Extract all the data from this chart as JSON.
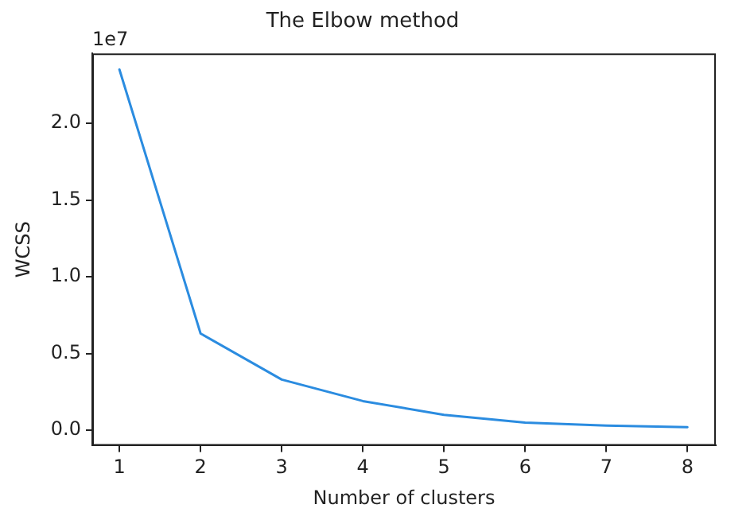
{
  "chart_data": {
    "type": "line",
    "title": "The Elbow method",
    "xlabel": "Number of clusters",
    "ylabel": "WCSS",
    "annotations": [
      "1e7"
    ],
    "x": [
      1,
      2,
      3,
      4,
      5,
      6,
      7,
      8
    ],
    "series": [
      {
        "color": "#2b8ce0",
        "values": [
          2.35,
          0.63,
          0.33,
          0.19,
          0.1,
          0.05,
          0.03,
          0.02
        ]
      }
    ],
    "xlim": [
      0.665,
      8.35
    ],
    "xticks": [
      1,
      2,
      3,
      4,
      5,
      6,
      7,
      8
    ],
    "ylim": [
      -0.1,
      2.455
    ],
    "yticks": [
      {
        "value": 0,
        "label": "0.0"
      },
      {
        "value": 0.5,
        "label": "0.5"
      },
      {
        "value": 1,
        "label": "1.0"
      },
      {
        "value": 1.5,
        "label": "1.5"
      },
      {
        "value": 2,
        "label": "2.0"
      }
    ],
    "grid": false,
    "legend": false,
    "marker": "none",
    "line_style": "solid"
  }
}
